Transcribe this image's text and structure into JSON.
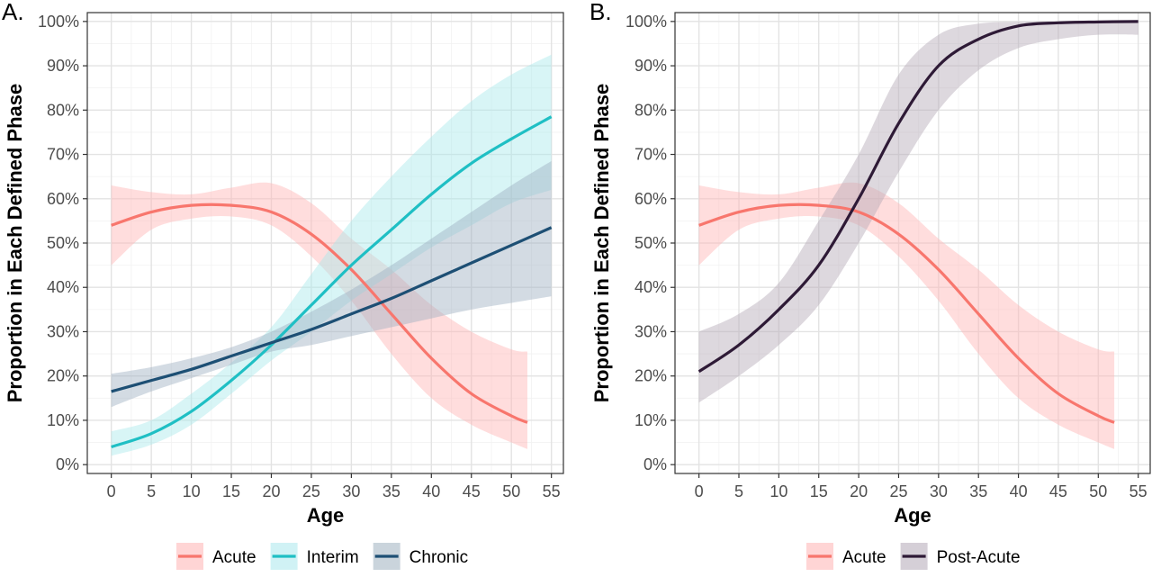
{
  "chart_data": [
    {
      "type": "line",
      "panel_label": "A.",
      "xlabel": "Age",
      "ylabel": "Proportion in Each Defined Phase",
      "xlim": [
        -3,
        56.5
      ],
      "ylim": [
        -0.02,
        1.02
      ],
      "x_ticks": [
        0,
        5,
        10,
        15,
        20,
        25,
        30,
        35,
        40,
        45,
        50,
        55
      ],
      "y_ticks": [
        0,
        0.1,
        0.2,
        0.3,
        0.4,
        0.5,
        0.6,
        0.7,
        0.8,
        0.9,
        1.0
      ],
      "y_tick_labels": [
        "0%",
        "10%",
        "20%",
        "30%",
        "40%",
        "50%",
        "60%",
        "70%",
        "80%",
        "90%",
        "100%"
      ],
      "grid": true,
      "legend_position": "bottom",
      "series": [
        {
          "name": "Acute",
          "color": "#f8766d",
          "band_color": "#ffb3b3",
          "x": [
            0,
            5,
            10,
            15,
            20,
            25,
            30,
            35,
            40,
            45,
            50,
            52
          ],
          "y": [
            0.54,
            0.57,
            0.585,
            0.585,
            0.57,
            0.52,
            0.44,
            0.34,
            0.24,
            0.16,
            0.11,
            0.095
          ],
          "lower": [
            0.45,
            0.53,
            0.555,
            0.56,
            0.54,
            0.47,
            0.37,
            0.25,
            0.15,
            0.09,
            0.05,
            0.035
          ],
          "upper": [
            0.63,
            0.615,
            0.61,
            0.625,
            0.635,
            0.59,
            0.51,
            0.44,
            0.36,
            0.3,
            0.26,
            0.255
          ]
        },
        {
          "name": "Interim",
          "color": "#1fbfc4",
          "band_color": "#a9e8ec",
          "x": [
            0,
            5,
            10,
            15,
            20,
            25,
            30,
            35,
            40,
            45,
            50,
            55
          ],
          "y": [
            0.04,
            0.07,
            0.12,
            0.19,
            0.27,
            0.36,
            0.45,
            0.53,
            0.61,
            0.68,
            0.735,
            0.785
          ],
          "lower": [
            0.02,
            0.045,
            0.09,
            0.16,
            0.235,
            0.3,
            0.37,
            0.43,
            0.49,
            0.54,
            0.59,
            0.62
          ],
          "upper": [
            0.075,
            0.1,
            0.16,
            0.23,
            0.31,
            0.43,
            0.55,
            0.65,
            0.74,
            0.82,
            0.88,
            0.925
          ]
        },
        {
          "name": "Chronic",
          "color": "#1d4f74",
          "band_color": "#9eb0c0",
          "x": [
            0,
            5,
            10,
            15,
            20,
            25,
            30,
            35,
            40,
            45,
            50,
            55
          ],
          "y": [
            0.165,
            0.19,
            0.215,
            0.245,
            0.275,
            0.305,
            0.34,
            0.375,
            0.415,
            0.455,
            0.495,
            0.535
          ],
          "lower": [
            0.13,
            0.165,
            0.195,
            0.225,
            0.255,
            0.27,
            0.29,
            0.31,
            0.33,
            0.35,
            0.365,
            0.38
          ],
          "upper": [
            0.205,
            0.22,
            0.24,
            0.265,
            0.3,
            0.345,
            0.395,
            0.45,
            0.51,
            0.57,
            0.63,
            0.685
          ]
        }
      ]
    },
    {
      "type": "line",
      "panel_label": "B.",
      "xlabel": "Age",
      "ylabel": "Proportion in Each Defined Phase",
      "xlim": [
        -3,
        56.5
      ],
      "ylim": [
        -0.02,
        1.02
      ],
      "x_ticks": [
        0,
        5,
        10,
        15,
        20,
        25,
        30,
        35,
        40,
        45,
        50,
        55
      ],
      "y_ticks": [
        0,
        0.1,
        0.2,
        0.3,
        0.4,
        0.5,
        0.6,
        0.7,
        0.8,
        0.9,
        1.0
      ],
      "y_tick_labels": [
        "0%",
        "10%",
        "20%",
        "30%",
        "40%",
        "50%",
        "60%",
        "70%",
        "80%",
        "90%",
        "100%"
      ],
      "grid": true,
      "legend_position": "bottom",
      "series": [
        {
          "name": "Acute",
          "color": "#f8766d",
          "band_color": "#ffb3b3",
          "x": [
            0,
            5,
            10,
            15,
            20,
            25,
            30,
            35,
            40,
            45,
            50,
            52
          ],
          "y": [
            0.54,
            0.57,
            0.585,
            0.585,
            0.57,
            0.52,
            0.44,
            0.34,
            0.24,
            0.16,
            0.11,
            0.095
          ],
          "lower": [
            0.45,
            0.53,
            0.555,
            0.56,
            0.54,
            0.47,
            0.37,
            0.25,
            0.15,
            0.09,
            0.05,
            0.035
          ],
          "upper": [
            0.63,
            0.615,
            0.61,
            0.625,
            0.635,
            0.59,
            0.51,
            0.44,
            0.36,
            0.3,
            0.26,
            0.255
          ]
        },
        {
          "name": "Post-Acute",
          "color": "#2e1a36",
          "band_color": "#b3a8b6",
          "x": [
            0,
            5,
            10,
            15,
            20,
            25,
            30,
            35,
            40,
            45,
            50,
            55
          ],
          "y": [
            0.21,
            0.27,
            0.35,
            0.45,
            0.6,
            0.77,
            0.9,
            0.96,
            0.99,
            0.997,
            0.999,
            1.0
          ],
          "lower": [
            0.14,
            0.2,
            0.27,
            0.36,
            0.5,
            0.66,
            0.8,
            0.89,
            0.94,
            0.96,
            0.97,
            0.97
          ],
          "upper": [
            0.3,
            0.34,
            0.41,
            0.55,
            0.7,
            0.88,
            0.97,
            0.995,
            0.999,
            1.0,
            1.0,
            1.0
          ]
        }
      ]
    }
  ]
}
